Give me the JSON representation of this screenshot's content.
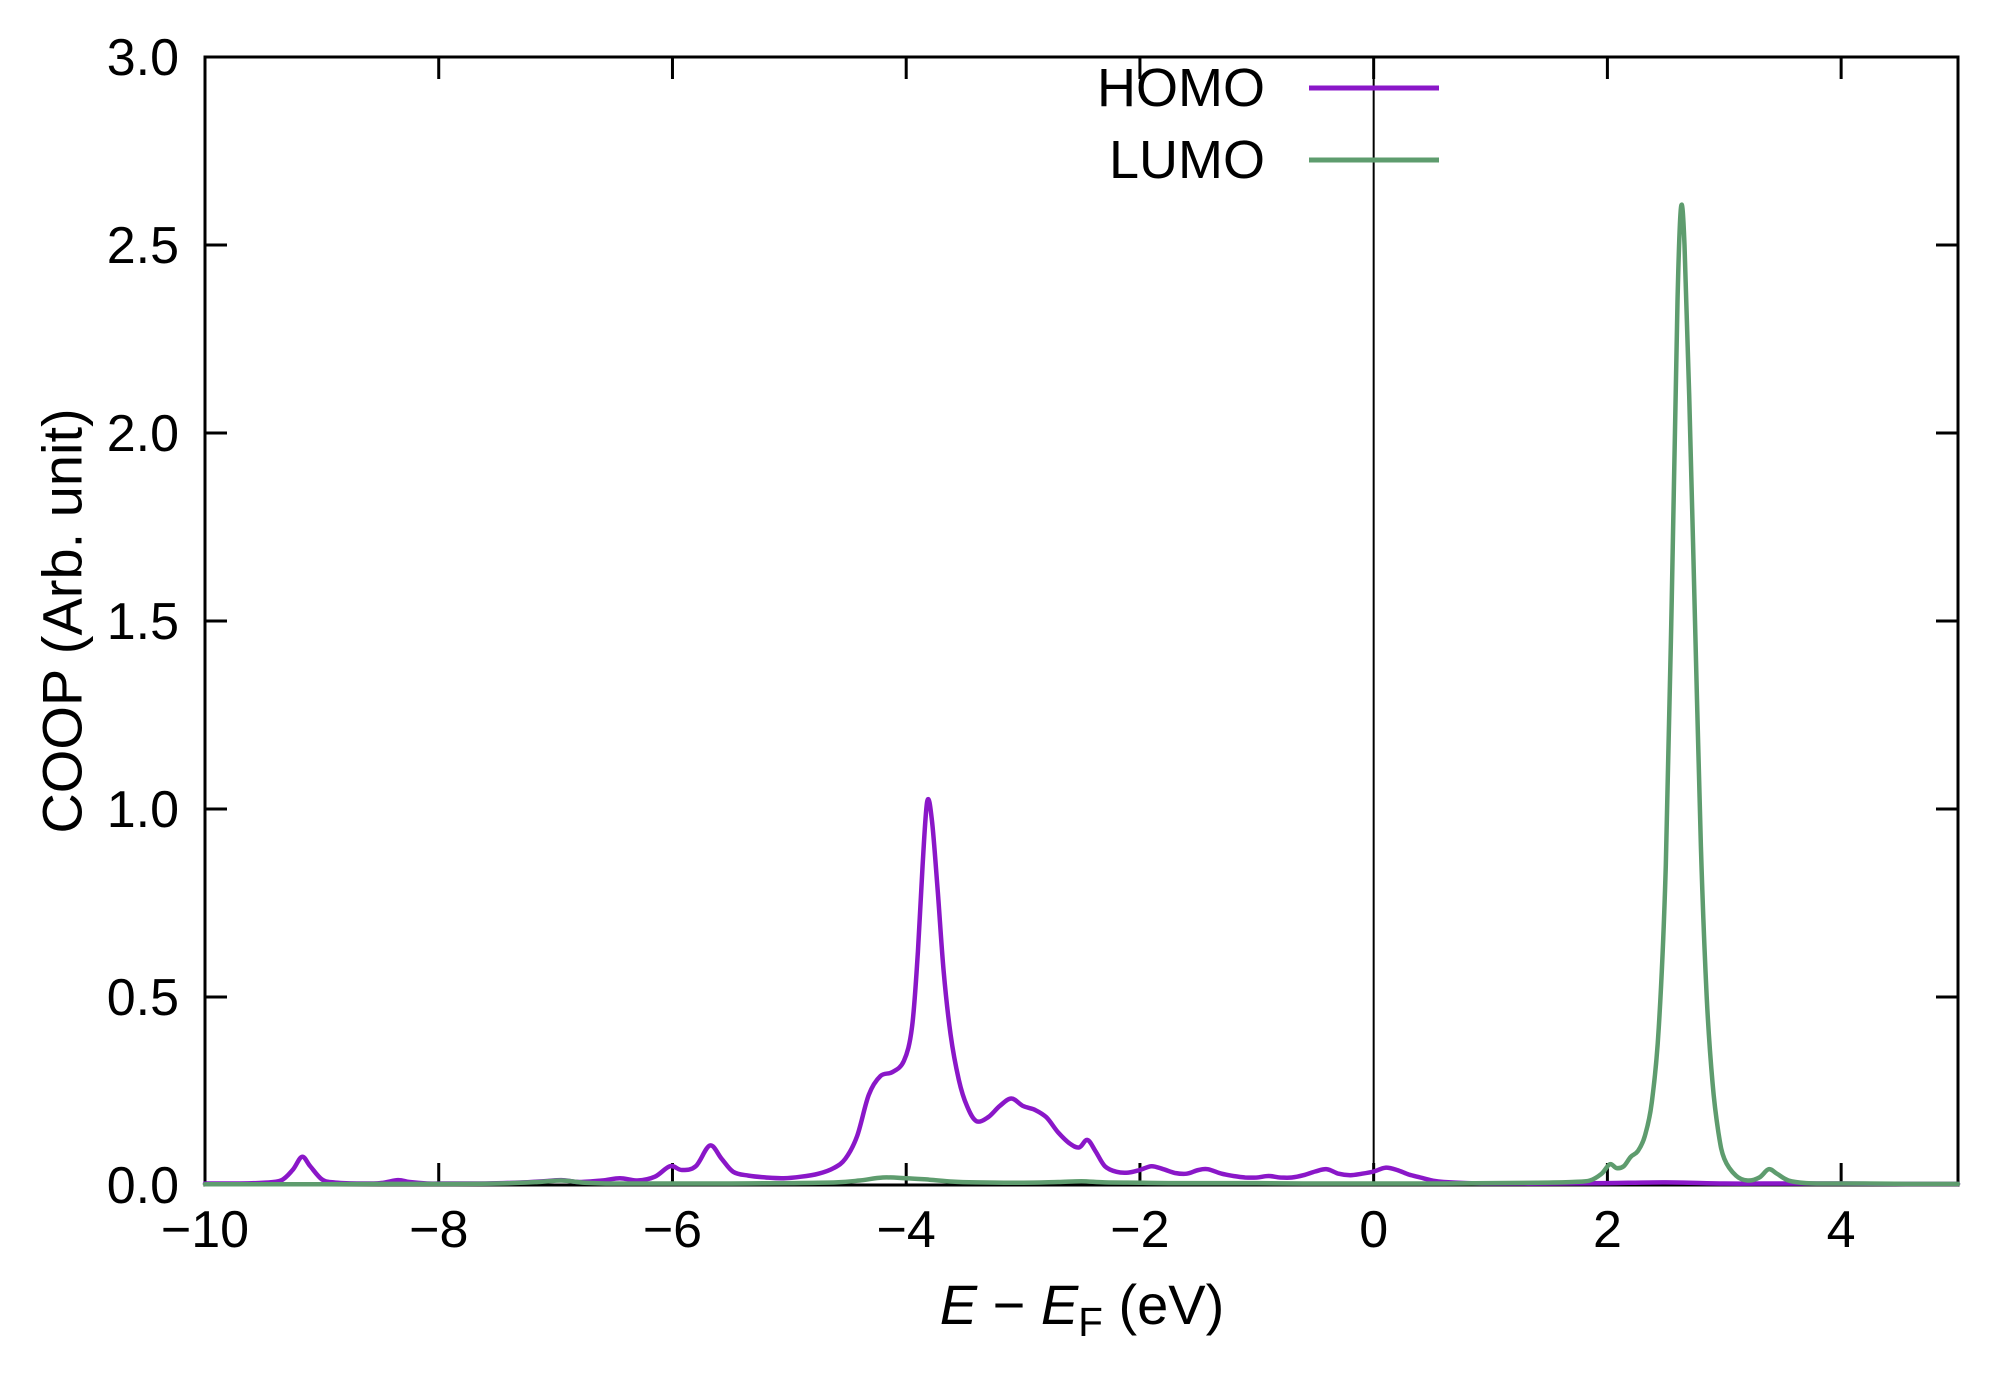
{
  "chart_data": {
    "type": "line",
    "title": "",
    "xlabel_text": "E − E_F (eV)",
    "xlabel_parts": {
      "e1": "E",
      "minus": " − ",
      "e2": "E",
      "sub": "F",
      "unit": " (eV)"
    },
    "ylabel": "COOP (Arb. unit)",
    "xlim": [
      -10,
      5
    ],
    "ylim": [
      0,
      3
    ],
    "grid": false,
    "legend_position": "top-right-inside",
    "vline_x": 0,
    "frame_color": "#000000",
    "x_ticks": [
      {
        "v": -10,
        "label": "−10"
      },
      {
        "v": -8,
        "label": "−8"
      },
      {
        "v": -6,
        "label": "−6"
      },
      {
        "v": -4,
        "label": "−4"
      },
      {
        "v": -2,
        "label": "−2"
      },
      {
        "v": 0,
        "label": "0"
      },
      {
        "v": 2,
        "label": "2"
      },
      {
        "v": 4,
        "label": "4"
      }
    ],
    "y_ticks": [
      {
        "v": 0.0,
        "label": "0.0"
      },
      {
        "v": 0.5,
        "label": "0.5"
      },
      {
        "v": 1.0,
        "label": "1.0"
      },
      {
        "v": 1.5,
        "label": "1.5"
      },
      {
        "v": 2.0,
        "label": "2.0"
      },
      {
        "v": 2.5,
        "label": "2.5"
      },
      {
        "v": 3.0,
        "label": "3.0"
      }
    ],
    "series": [
      {
        "name": "HOMO",
        "color": "#8a17c8",
        "points": [
          [
            -10,
            0.004
          ],
          [
            -9.7,
            0.004
          ],
          [
            -9.5,
            0.006
          ],
          [
            -9.35,
            0.012
          ],
          [
            -9.25,
            0.04
          ],
          [
            -9.17,
            0.075
          ],
          [
            -9.1,
            0.05
          ],
          [
            -9.0,
            0.015
          ],
          [
            -8.9,
            0.007
          ],
          [
            -8.7,
            0.004
          ],
          [
            -8.5,
            0.005
          ],
          [
            -8.35,
            0.013
          ],
          [
            -8.25,
            0.008
          ],
          [
            -8.1,
            0.004
          ],
          [
            -7.9,
            0.004
          ],
          [
            -7.6,
            0.004
          ],
          [
            -7.35,
            0.006
          ],
          [
            -7.1,
            0.01
          ],
          [
            -6.95,
            0.013
          ],
          [
            -6.8,
            0.008
          ],
          [
            -6.6,
            0.012
          ],
          [
            -6.45,
            0.018
          ],
          [
            -6.3,
            0.012
          ],
          [
            -6.15,
            0.022
          ],
          [
            -6.02,
            0.05
          ],
          [
            -5.92,
            0.04
          ],
          [
            -5.8,
            0.05
          ],
          [
            -5.68,
            0.105
          ],
          [
            -5.58,
            0.07
          ],
          [
            -5.48,
            0.035
          ],
          [
            -5.35,
            0.025
          ],
          [
            -5.2,
            0.02
          ],
          [
            -5.05,
            0.018
          ],
          [
            -4.9,
            0.022
          ],
          [
            -4.75,
            0.03
          ],
          [
            -4.62,
            0.045
          ],
          [
            -4.52,
            0.07
          ],
          [
            -4.42,
            0.13
          ],
          [
            -4.32,
            0.24
          ],
          [
            -4.22,
            0.29
          ],
          [
            -4.12,
            0.3
          ],
          [
            -4.02,
            0.33
          ],
          [
            -3.95,
            0.42
          ],
          [
            -3.9,
            0.62
          ],
          [
            -3.86,
            0.85
          ],
          [
            -3.82,
            1.02
          ],
          [
            -3.78,
            0.97
          ],
          [
            -3.73,
            0.78
          ],
          [
            -3.68,
            0.57
          ],
          [
            -3.62,
            0.4
          ],
          [
            -3.55,
            0.28
          ],
          [
            -3.48,
            0.21
          ],
          [
            -3.4,
            0.17
          ],
          [
            -3.3,
            0.18
          ],
          [
            -3.2,
            0.21
          ],
          [
            -3.1,
            0.23
          ],
          [
            -3.0,
            0.21
          ],
          [
            -2.9,
            0.2
          ],
          [
            -2.8,
            0.18
          ],
          [
            -2.7,
            0.14
          ],
          [
            -2.6,
            0.11
          ],
          [
            -2.52,
            0.1
          ],
          [
            -2.45,
            0.12
          ],
          [
            -2.38,
            0.09
          ],
          [
            -2.3,
            0.05
          ],
          [
            -2.2,
            0.035
          ],
          [
            -2.1,
            0.033
          ],
          [
            -2.0,
            0.04
          ],
          [
            -1.9,
            0.05
          ],
          [
            -1.8,
            0.042
          ],
          [
            -1.7,
            0.032
          ],
          [
            -1.6,
            0.03
          ],
          [
            -1.5,
            0.04
          ],
          [
            -1.42,
            0.042
          ],
          [
            -1.3,
            0.03
          ],
          [
            -1.2,
            0.024
          ],
          [
            -1.1,
            0.02
          ],
          [
            -1.0,
            0.02
          ],
          [
            -0.9,
            0.024
          ],
          [
            -0.8,
            0.02
          ],
          [
            -0.7,
            0.02
          ],
          [
            -0.6,
            0.026
          ],
          [
            -0.5,
            0.036
          ],
          [
            -0.4,
            0.042
          ],
          [
            -0.3,
            0.03
          ],
          [
            -0.2,
            0.026
          ],
          [
            -0.1,
            0.03
          ],
          [
            0.0,
            0.036
          ],
          [
            0.1,
            0.046
          ],
          [
            0.2,
            0.04
          ],
          [
            0.3,
            0.028
          ],
          [
            0.4,
            0.02
          ],
          [
            0.5,
            0.012
          ],
          [
            0.6,
            0.008
          ],
          [
            0.8,
            0.005
          ],
          [
            1.0,
            0.004
          ],
          [
            1.5,
            0.004
          ],
          [
            2.0,
            0.005
          ],
          [
            2.5,
            0.007
          ],
          [
            3.0,
            0.004
          ],
          [
            3.5,
            0.004
          ],
          [
            4.0,
            0.004
          ],
          [
            4.5,
            0.003
          ],
          [
            5.0,
            0.003
          ]
        ]
      },
      {
        "name": "LUMO",
        "color": "#5e9c6e",
        "points": [
          [
            -10,
            0.002
          ],
          [
            -9.5,
            0.002
          ],
          [
            -9.0,
            0.002
          ],
          [
            -8.5,
            0.003
          ],
          [
            -8.0,
            0.003
          ],
          [
            -7.5,
            0.004
          ],
          [
            -7.15,
            0.008
          ],
          [
            -6.95,
            0.012
          ],
          [
            -6.75,
            0.006
          ],
          [
            -6.5,
            0.004
          ],
          [
            -6.0,
            0.004
          ],
          [
            -5.5,
            0.004
          ],
          [
            -5.0,
            0.005
          ],
          [
            -4.6,
            0.007
          ],
          [
            -4.4,
            0.012
          ],
          [
            -4.2,
            0.02
          ],
          [
            -4.0,
            0.018
          ],
          [
            -3.8,
            0.014
          ],
          [
            -3.6,
            0.009
          ],
          [
            -3.4,
            0.007
          ],
          [
            -3.0,
            0.006
          ],
          [
            -2.7,
            0.008
          ],
          [
            -2.5,
            0.01
          ],
          [
            -2.3,
            0.007
          ],
          [
            -2.0,
            0.006
          ],
          [
            -1.7,
            0.005
          ],
          [
            -1.4,
            0.005
          ],
          [
            -1.0,
            0.005
          ],
          [
            -0.6,
            0.004
          ],
          [
            -0.2,
            0.004
          ],
          [
            0.2,
            0.004
          ],
          [
            0.6,
            0.004
          ],
          [
            1.0,
            0.005
          ],
          [
            1.4,
            0.006
          ],
          [
            1.7,
            0.008
          ],
          [
            1.85,
            0.012
          ],
          [
            1.95,
            0.03
          ],
          [
            2.02,
            0.055
          ],
          [
            2.08,
            0.045
          ],
          [
            2.14,
            0.05
          ],
          [
            2.2,
            0.075
          ],
          [
            2.26,
            0.09
          ],
          [
            2.32,
            0.13
          ],
          [
            2.38,
            0.22
          ],
          [
            2.44,
            0.42
          ],
          [
            2.5,
            0.85
          ],
          [
            2.55,
            1.55
          ],
          [
            2.6,
            2.35
          ],
          [
            2.63,
            2.6
          ],
          [
            2.66,
            2.5
          ],
          [
            2.7,
            2.1
          ],
          [
            2.75,
            1.5
          ],
          [
            2.8,
            0.9
          ],
          [
            2.85,
            0.5
          ],
          [
            2.9,
            0.27
          ],
          [
            2.95,
            0.14
          ],
          [
            3.0,
            0.07
          ],
          [
            3.1,
            0.025
          ],
          [
            3.2,
            0.012
          ],
          [
            3.3,
            0.02
          ],
          [
            3.38,
            0.042
          ],
          [
            3.45,
            0.03
          ],
          [
            3.55,
            0.012
          ],
          [
            3.7,
            0.005
          ],
          [
            3.9,
            0.004
          ],
          [
            4.2,
            0.004
          ],
          [
            4.6,
            0.003
          ],
          [
            5.0,
            0.003
          ]
        ]
      }
    ]
  }
}
